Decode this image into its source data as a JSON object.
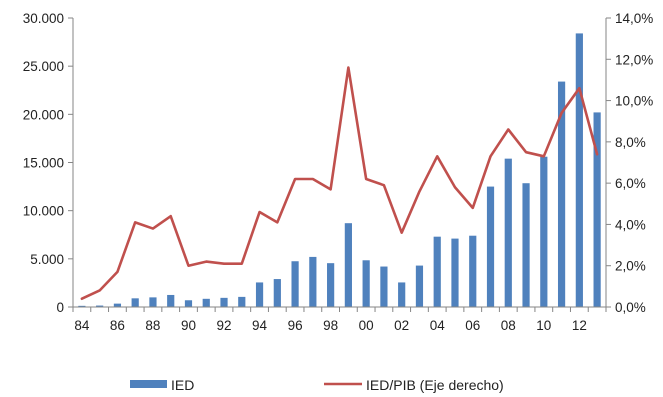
{
  "chart_data": {
    "type": "bar",
    "title": "",
    "xlabel": "",
    "ylabel": "",
    "y2label": "",
    "x": [
      1984,
      1985,
      1986,
      1987,
      1988,
      1989,
      1990,
      1991,
      1992,
      1993,
      1994,
      1995,
      1996,
      1997,
      1998,
      1999,
      2000,
      2001,
      2002,
      2003,
      2004,
      2005,
      2006,
      2007,
      2008,
      2009,
      2010,
      2011,
      2012,
      2013
    ],
    "x_tick_labels": [
      {
        "year": 1984,
        "label": "84"
      },
      {
        "year": 1986,
        "label": "86"
      },
      {
        "year": 1988,
        "label": "88"
      },
      {
        "year": 1990,
        "label": "90"
      },
      {
        "year": 1992,
        "label": "92"
      },
      {
        "year": 1994,
        "label": "94"
      },
      {
        "year": 1996,
        "label": "96"
      },
      {
        "year": 1998,
        "label": "98"
      },
      {
        "year": 2000,
        "label": "00"
      },
      {
        "year": 2002,
        "label": "02"
      },
      {
        "year": 2004,
        "label": "04"
      },
      {
        "year": 2006,
        "label": "06"
      },
      {
        "year": 2008,
        "label": "08"
      },
      {
        "year": 2010,
        "label": "10"
      },
      {
        "year": 2012,
        "label": "12"
      }
    ],
    "ylim": [
      0,
      30000
    ],
    "y_ticks": [
      0,
      5000,
      10000,
      15000,
      20000,
      25000,
      30000
    ],
    "y_tick_labels": [
      "0",
      "5.000",
      "10.000",
      "15.000",
      "20.000",
      "25.000",
      "30.000"
    ],
    "y2lim": [
      0,
      14
    ],
    "y2_ticks": [
      0,
      2,
      4,
      6,
      8,
      10,
      12,
      14
    ],
    "y2_tick_labels": [
      "0,0%",
      "2,0%",
      "4,0%",
      "6,0%",
      "8,0%",
      "10,0%",
      "12,0%",
      "14,0%"
    ],
    "grid": false,
    "legend_position": "bottom",
    "series": [
      {
        "name": "IED",
        "type": "bar",
        "axis": "left",
        "color": "#4F81BD",
        "values": [
          120,
          150,
          350,
          900,
          1000,
          1250,
          700,
          850,
          950,
          1050,
          2550,
          2900,
          4750,
          5200,
          4550,
          8700,
          4850,
          4200,
          2550,
          4300,
          7300,
          7100,
          7400,
          12500,
          15400,
          12850,
          15600,
          23400,
          28400,
          20200
        ]
      },
      {
        "name": "IED/PIB (Eje derecho)",
        "type": "line",
        "axis": "right",
        "color": "#C0504D",
        "values": [
          0.4,
          0.8,
          1.7,
          4.1,
          3.8,
          4.4,
          2.0,
          2.2,
          2.1,
          2.1,
          4.6,
          4.1,
          6.2,
          6.2,
          5.7,
          11.6,
          6.2,
          5.9,
          3.6,
          5.6,
          7.3,
          5.8,
          4.8,
          7.3,
          8.6,
          7.5,
          7.3,
          9.4,
          10.6,
          7.4
        ]
      }
    ]
  }
}
